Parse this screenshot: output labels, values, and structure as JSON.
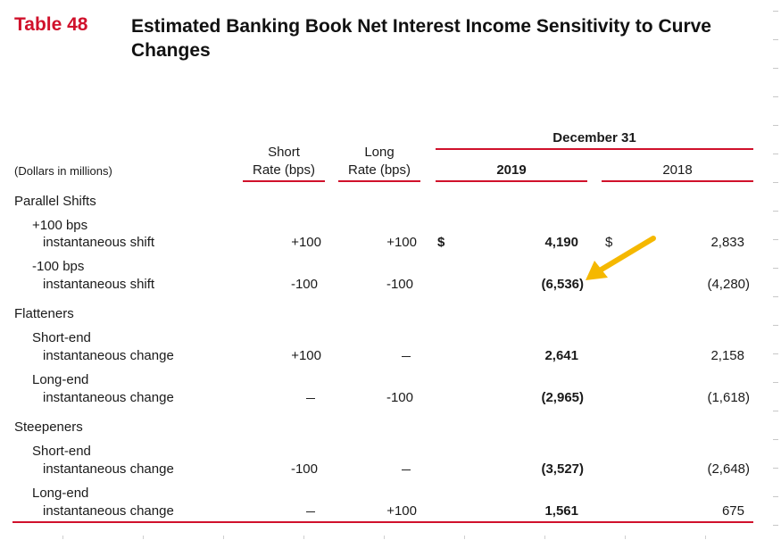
{
  "table_number": "Table 48",
  "title": "Estimated Banking Book Net Interest Income Sensitivity to Curve Changes",
  "header": {
    "units": "(Dollars in millions)",
    "short_rate": [
      "Short",
      "Rate (bps)"
    ],
    "long_rate": [
      "Long",
      "Rate (bps)"
    ],
    "period_group": "December 31",
    "year_current": "2019",
    "year_prior": "2018"
  },
  "sections": [
    {
      "title": "Parallel Shifts"
    },
    {
      "title": "Flatteners"
    },
    {
      "title": "Steepeners"
    }
  ],
  "rows": [
    {
      "line1": "+100 bps",
      "line2": "instantaneous shift",
      "short": "+100",
      "long": "+100",
      "cur_symbol": "$",
      "val2019": "4,190",
      "prior_symbol": "$",
      "val2018": "2,833"
    },
    {
      "line1": "-100 bps",
      "line2": "instantaneous shift",
      "short": "-100",
      "long": "-100",
      "cur_symbol": "",
      "val2019": "(6,536)",
      "prior_symbol": "",
      "val2018": "(4,280)"
    },
    {
      "line1": "Short-end",
      "line2": "instantaneous change",
      "short": "+100",
      "long": "",
      "cur_symbol": "",
      "val2019": "2,641",
      "prior_symbol": "",
      "val2018": "2,158"
    },
    {
      "line1": "Long-end",
      "line2": "instantaneous change",
      "short": "",
      "long": "-100",
      "cur_symbol": "",
      "val2019": "(2,965)",
      "prior_symbol": "",
      "val2018": "(1,618)"
    },
    {
      "line1": "Short-end",
      "line2": "instantaneous change",
      "short": "-100",
      "long": "",
      "cur_symbol": "",
      "val2019": "(3,527)",
      "prior_symbol": "",
      "val2018": "(2,648)"
    },
    {
      "line1": "Long-end",
      "line2": "instantaneous change",
      "short": "",
      "long": "+100",
      "cur_symbol": "",
      "val2019": "1,561",
      "prior_symbol": "",
      "val2018": "675"
    }
  ],
  "colors": {
    "accent_red": "#d0112b",
    "arrow": "#f5b800"
  },
  "annotation": {
    "icon": "arrow-icon",
    "points_to": "rows.1.val2019"
  }
}
